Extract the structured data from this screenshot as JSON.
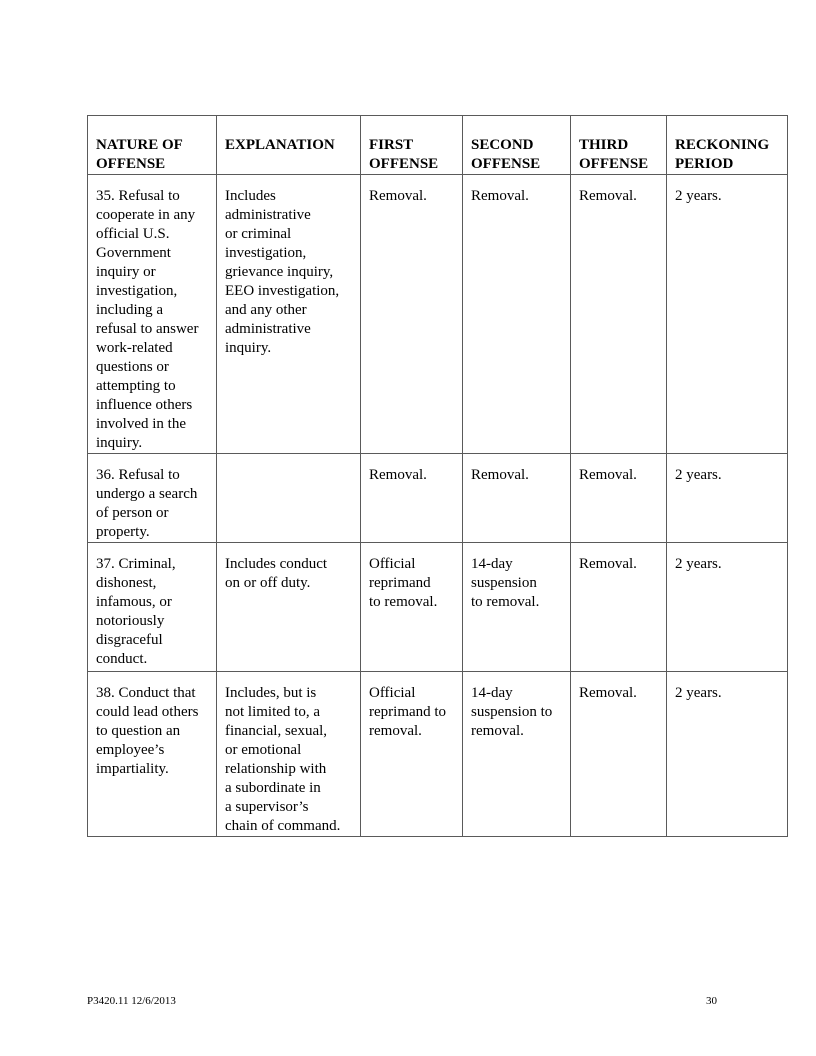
{
  "table": {
    "headers": [
      "NATURE OF\nOFFENSE",
      "EXPLANATION",
      "FIRST\nOFFENSE",
      "SECOND\nOFFENSE",
      "THIRD\nOFFENSE",
      "RECKONING\nPERIOD"
    ],
    "rows": [
      [
        "35. Refusal to\ncooperate in any\nofficial U.S.\nGovernment\ninquiry or\ninvestigation,\nincluding a\nrefusal to answer\nwork-related\nquestions or\nattempting to\ninfluence others\ninvolved in the\ninquiry.",
        "Includes\nadministrative\nor criminal\ninvestigation,\ngrievance inquiry,\nEEO investigation,\nand any other\nadministrative\ninquiry.",
        "Removal.",
        "Removal.",
        "Removal.",
        "2 years."
      ],
      [
        "36. Refusal to\nundergo a search\nof person or\nproperty.",
        "",
        "Removal.",
        "Removal.",
        "Removal.",
        "2 years."
      ],
      [
        "37. Criminal,\ndishonest,\ninfamous, or\nnotoriously\ndisgraceful\nconduct.",
        "Includes conduct\non or off duty.",
        "Official\nreprimand\nto removal.",
        "14-day\nsuspension\nto removal.",
        "Removal.",
        "2 years."
      ],
      [
        "38. Conduct that\ncould lead others\nto question an\nemployee’s\nimpartiality.",
        "Includes, but is\nnot limited to, a\nfinancial, sexual,\nor emotional\nrelationship with\na subordinate in\na supervisor’s\nchain of command.",
        "Official\nreprimand to\nremoval.",
        "14-day\nsuspension to\nremoval.",
        "Removal.",
        "2 years."
      ]
    ]
  },
  "footer": {
    "doc_id": "P3420.11   12/6/2013",
    "page_number": "30"
  }
}
